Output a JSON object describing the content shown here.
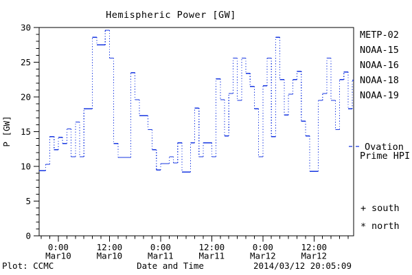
{
  "title": "Hemispheric Power [GW]",
  "axes": {
    "y_label": "P [GW]",
    "x_label": "Date and Time",
    "x_ticks": [
      {
        "hour": 0,
        "time": "0:00",
        "date": "Mar10"
      },
      {
        "hour": 12,
        "time": "12:00",
        "date": "Mar10"
      },
      {
        "hour": 24,
        "time": "0:00",
        "date": "Mar11"
      },
      {
        "hour": 36,
        "time": "12:00",
        "date": "Mar11"
      },
      {
        "hour": 48,
        "time": "0:00",
        "date": "Mar12"
      },
      {
        "hour": 60,
        "time": "12:00",
        "date": "Mar12"
      }
    ]
  },
  "legend": {
    "satellites": [
      {
        "label": "METP-02",
        "color": "#000000"
      },
      {
        "label": "NOAA-15",
        "color": "#1535e0"
      },
      {
        "label": "NOAA-16",
        "color": "#44c3f2"
      },
      {
        "label": "NOAA-18",
        "color": "#63e38c"
      },
      {
        "label": "NOAA-19",
        "color": "#ffa21f"
      }
    ],
    "ovation": {
      "line1": "Ovation",
      "line2": "Prime HPI",
      "color": "#1535e0"
    },
    "markers": [
      {
        "symbol": "+",
        "label": "south"
      },
      {
        "symbol": "*",
        "label": "north"
      }
    ]
  },
  "footer": {
    "left": "Plot: CCMC",
    "right": "2014/03/12 20:05:09"
  },
  "chart_data": {
    "type": "line",
    "subtype": "step-post",
    "title": "Hemispheric Power [GW]",
    "xlabel": "Date and Time",
    "ylabel": "P [GW]",
    "ylim": [
      0,
      30
    ],
    "y_major_step": 5,
    "y_minor_step": 1,
    "xlim_hours": [
      -4.5,
      69.3
    ],
    "x_minor_step_hours": 2,
    "x_hours_reference": "hours since Mar10 0:00",
    "legend_position": "right",
    "grid": false,
    "series": [
      {
        "name": "Ovation Prime HPI",
        "color": "#1535e0",
        "start_hour": -4,
        "step_hours": 1,
        "values": [
          9.4,
          10.3,
          14.3,
          12.4,
          14.2,
          13.3,
          15.4,
          11.4,
          16.4,
          11.4,
          18.3,
          18.3,
          28.6,
          27.5,
          27.5,
          29.6,
          25.6,
          13.3,
          11.3,
          11.3,
          11.3,
          23.5,
          19.6,
          17.3,
          17.3,
          15.3,
          12.4,
          9.5,
          10.4,
          10.4,
          11.4,
          10.5,
          13.4,
          9.2,
          9.2,
          13.4,
          18.4,
          11.4,
          13.4,
          13.4,
          11.4,
          22.6,
          19.6,
          14.4,
          20.5,
          25.6,
          19.5,
          25.6,
          23.4,
          21.5,
          18.3,
          11.4,
          21.6,
          25.6,
          14.3,
          28.6,
          22.5,
          17.4,
          20.4,
          22.5,
          23.7,
          16.5,
          14.4,
          9.3,
          9.3,
          19.5,
          20.5,
          25.6,
          19.5,
          15.3,
          22.5,
          23.6,
          18.3,
          22.4
        ]
      }
    ]
  }
}
